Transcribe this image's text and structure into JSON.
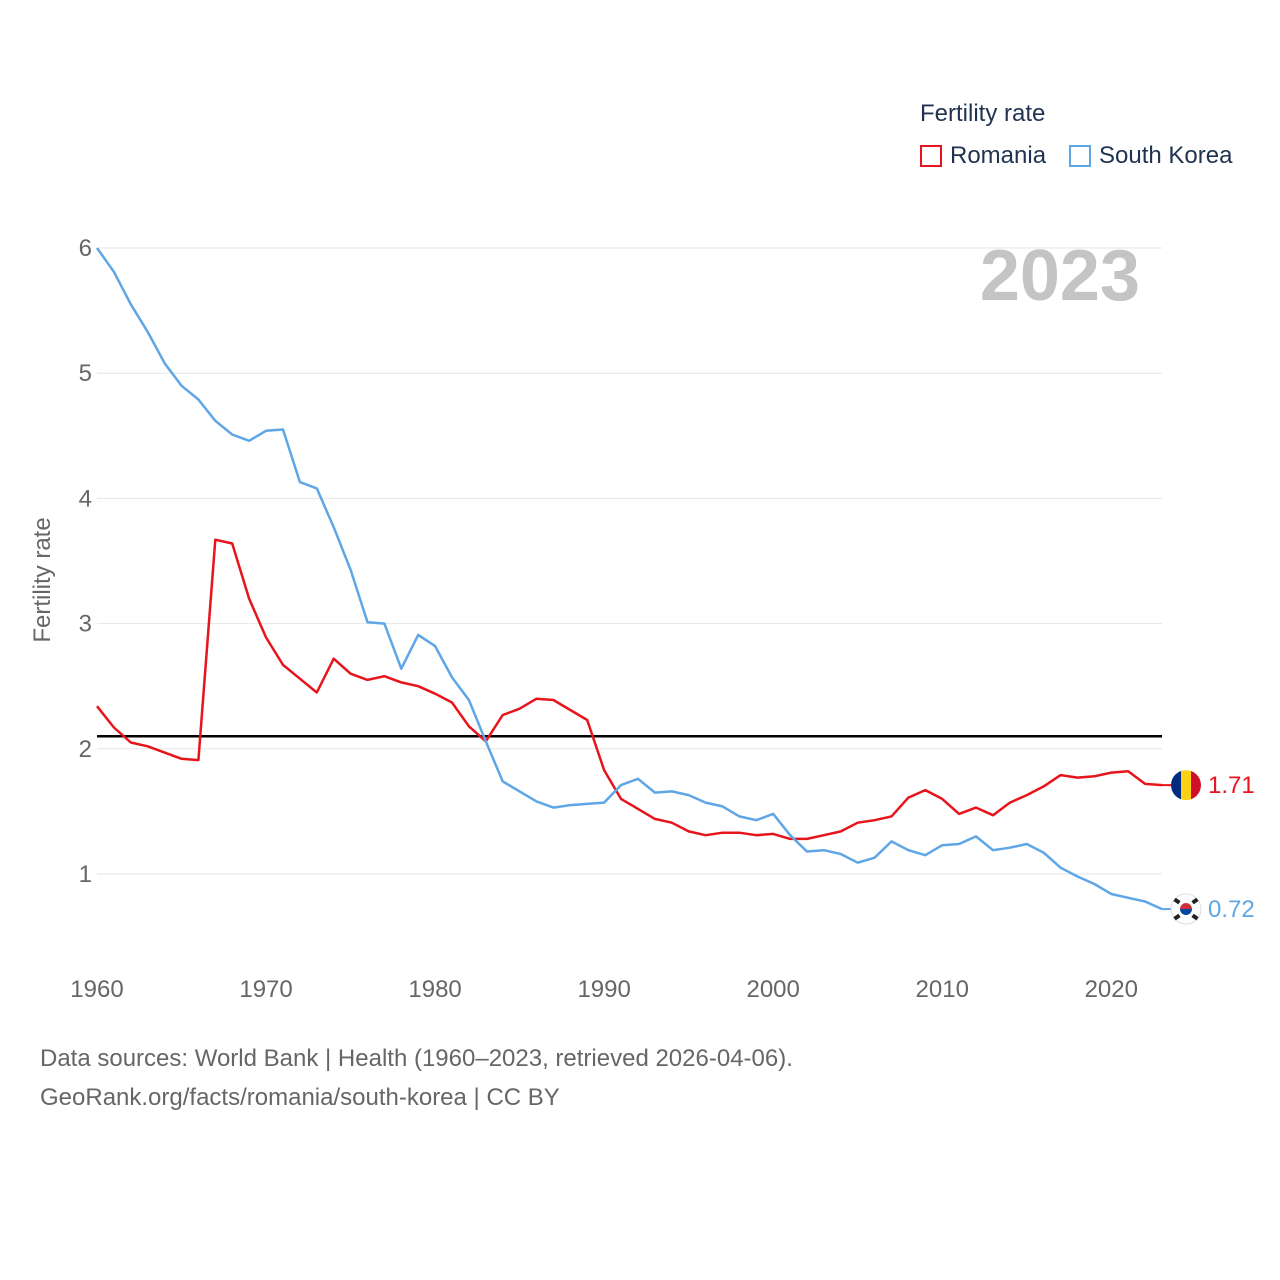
{
  "legend": {
    "title": "Fertility rate",
    "items": [
      {
        "label": "Romania",
        "color": "#e8141c"
      },
      {
        "label": "South Korea",
        "color": "#5ea6e6"
      }
    ]
  },
  "year_label": "2023",
  "footer": {
    "line1": "Data sources: World Bank | Health (1960–2023, retrieved 2026-04-06).",
    "line2": "GeoRank.org/facts/romania/south-korea | CC BY"
  },
  "end_labels": {
    "romania": "1.71",
    "south_korea": "0.72"
  },
  "chart_data": {
    "type": "line",
    "title": "",
    "xlabel": "",
    "ylabel": "Fertility rate",
    "xlim": [
      1960,
      2023
    ],
    "ylim": [
      0.4,
      6.1
    ],
    "yticks": [
      1,
      2,
      3,
      4,
      5,
      6
    ],
    "xticks": [
      1960,
      1970,
      1980,
      1990,
      2000,
      2010,
      2020
    ],
    "reference_line": {
      "y": 2.1,
      "color": "#000000"
    },
    "x": [
      1960,
      1961,
      1962,
      1963,
      1964,
      1965,
      1966,
      1967,
      1968,
      1969,
      1970,
      1971,
      1972,
      1973,
      1974,
      1975,
      1976,
      1977,
      1978,
      1979,
      1980,
      1981,
      1982,
      1983,
      1984,
      1985,
      1986,
      1987,
      1988,
      1989,
      1990,
      1991,
      1992,
      1993,
      1994,
      1995,
      1996,
      1997,
      1998,
      1999,
      2000,
      2001,
      2002,
      2003,
      2004,
      2005,
      2006,
      2007,
      2008,
      2009,
      2010,
      2011,
      2012,
      2013,
      2014,
      2015,
      2016,
      2017,
      2018,
      2019,
      2020,
      2021,
      2022,
      2023
    ],
    "series": [
      {
        "name": "Romania",
        "color": "#e8141c",
        "flag": "romania-flag-icon",
        "values": [
          2.34,
          2.17,
          2.05,
          2.02,
          1.97,
          1.92,
          1.91,
          3.67,
          3.64,
          3.2,
          2.89,
          2.67,
          2.56,
          2.45,
          2.72,
          2.6,
          2.55,
          2.58,
          2.53,
          2.5,
          2.44,
          2.37,
          2.18,
          2.06,
          2.27,
          2.32,
          2.4,
          2.39,
          2.31,
          2.23,
          1.83,
          1.6,
          1.52,
          1.44,
          1.41,
          1.34,
          1.31,
          1.33,
          1.33,
          1.31,
          1.32,
          1.28,
          1.28,
          1.31,
          1.34,
          1.41,
          1.43,
          1.46,
          1.61,
          1.67,
          1.6,
          1.48,
          1.53,
          1.47,
          1.57,
          1.63,
          1.7,
          1.79,
          1.77,
          1.78,
          1.81,
          1.82,
          1.72,
          1.71
        ]
      },
      {
        "name": "South Korea",
        "color": "#5ea6e6",
        "flag": "south-korea-flag-icon",
        "values": [
          6.0,
          5.81,
          5.55,
          5.33,
          5.08,
          4.9,
          4.79,
          4.62,
          4.51,
          4.46,
          4.54,
          4.55,
          4.13,
          4.08,
          3.77,
          3.43,
          3.01,
          3.0,
          2.64,
          2.91,
          2.82,
          2.57,
          2.39,
          2.06,
          1.74,
          1.66,
          1.58,
          1.53,
          1.55,
          1.56,
          1.57,
          1.71,
          1.76,
          1.65,
          1.66,
          1.63,
          1.57,
          1.54,
          1.46,
          1.43,
          1.48,
          1.31,
          1.18,
          1.19,
          1.16,
          1.09,
          1.13,
          1.26,
          1.19,
          1.15,
          1.23,
          1.24,
          1.3,
          1.19,
          1.21,
          1.24,
          1.17,
          1.05,
          0.98,
          0.92,
          0.84,
          0.81,
          0.78,
          0.72
        ]
      }
    ]
  }
}
